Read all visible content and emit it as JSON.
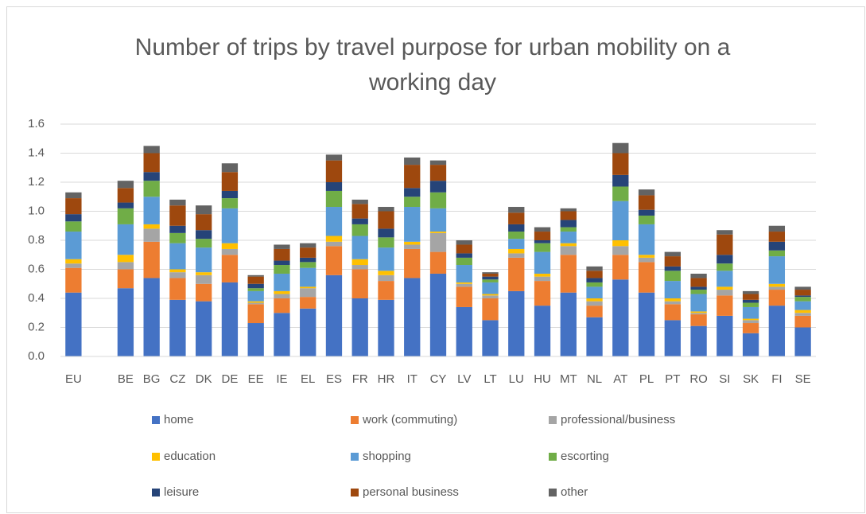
{
  "chart_data": {
    "type": "stacked_bar",
    "title": "Number of trips by travel purpose for urban mobility on a working day",
    "categories": [
      "EU",
      null,
      "BE",
      "BG",
      "CZ",
      "DK",
      "DE",
      "EE",
      "IE",
      "EL",
      "ES",
      "FR",
      "HR",
      "IT",
      "CY",
      "LV",
      "LT",
      "LU",
      "HU",
      "MT",
      "NL",
      "AT",
      "PL",
      "PT",
      "RO",
      "SI",
      "SK",
      "FI",
      "SE"
    ],
    "series": [
      {
        "name": "home",
        "color": "#4472c4",
        "values": [
          0.44,
          null,
          0.47,
          0.54,
          0.39,
          0.38,
          0.51,
          0.23,
          0.3,
          0.33,
          0.56,
          0.4,
          0.39,
          0.54,
          0.57,
          0.34,
          0.25,
          0.45,
          0.35,
          0.44,
          0.27,
          0.53,
          0.44,
          0.25,
          0.21,
          0.28,
          0.16,
          0.35,
          0.2
        ]
      },
      {
        "name": "work (commuting)",
        "color": "#ed7d31",
        "values": [
          0.17,
          null,
          0.13,
          0.25,
          0.15,
          0.12,
          0.19,
          0.13,
          0.1,
          0.08,
          0.2,
          0.2,
          0.13,
          0.2,
          0.15,
          0.14,
          0.15,
          0.23,
          0.17,
          0.26,
          0.08,
          0.17,
          0.21,
          0.11,
          0.08,
          0.14,
          0.07,
          0.11,
          0.08
        ]
      },
      {
        "name": "professional/business",
        "color": "#a5a5a5",
        "values": [
          0.03,
          null,
          0.05,
          0.09,
          0.04,
          0.06,
          0.04,
          0.01,
          0.03,
          0.06,
          0.03,
          0.03,
          0.04,
          0.03,
          0.13,
          0.02,
          0.02,
          0.03,
          0.03,
          0.06,
          0.03,
          0.06,
          0.03,
          0.02,
          0.01,
          0.04,
          0.02,
          0.02,
          0.02
        ]
      },
      {
        "name": "education",
        "color": "#ffc000",
        "values": [
          0.03,
          null,
          0.05,
          0.03,
          0.02,
          0.02,
          0.04,
          0.01,
          0.02,
          0.01,
          0.04,
          0.04,
          0.03,
          0.02,
          0.01,
          0.01,
          0.01,
          0.03,
          0.02,
          0.02,
          0.02,
          0.04,
          0.02,
          0.02,
          0.01,
          0.02,
          0.01,
          0.02,
          0.02
        ]
      },
      {
        "name": "shopping",
        "color": "#5b9bd5",
        "values": [
          0.19,
          null,
          0.21,
          0.19,
          0.18,
          0.17,
          0.24,
          0.07,
          0.12,
          0.13,
          0.2,
          0.16,
          0.16,
          0.24,
          0.16,
          0.12,
          0.08,
          0.07,
          0.15,
          0.08,
          0.08,
          0.27,
          0.21,
          0.12,
          0.12,
          0.11,
          0.08,
          0.19,
          0.06
        ]
      },
      {
        "name": "escorting",
        "color": "#70ad47",
        "values": [
          0.07,
          null,
          0.11,
          0.11,
          0.07,
          0.06,
          0.07,
          0.02,
          0.06,
          0.04,
          0.11,
          0.08,
          0.07,
          0.07,
          0.11,
          0.05,
          0.02,
          0.05,
          0.06,
          0.03,
          0.03,
          0.1,
          0.06,
          0.07,
          0.03,
          0.05,
          0.03,
          0.04,
          0.03
        ]
      },
      {
        "name": "leisure",
        "color": "#264478",
        "values": [
          0.05,
          null,
          0.04,
          0.06,
          0.05,
          0.06,
          0.05,
          0.03,
          0.03,
          0.03,
          0.06,
          0.04,
          0.06,
          0.06,
          0.08,
          0.03,
          0.02,
          0.05,
          0.02,
          0.05,
          0.03,
          0.08,
          0.04,
          0.03,
          0.02,
          0.06,
          0.02,
          0.06,
          0.01
        ]
      },
      {
        "name": "personal business",
        "color": "#9e480e",
        "values": [
          0.11,
          null,
          0.1,
          0.13,
          0.14,
          0.11,
          0.13,
          0.05,
          0.08,
          0.07,
          0.15,
          0.1,
          0.12,
          0.16,
          0.11,
          0.06,
          0.02,
          0.08,
          0.06,
          0.06,
          0.05,
          0.15,
          0.1,
          0.07,
          0.06,
          0.14,
          0.04,
          0.07,
          0.04
        ]
      },
      {
        "name": "other",
        "color": "#636363",
        "values": [
          0.04,
          null,
          0.05,
          0.05,
          0.04,
          0.06,
          0.06,
          0.01,
          0.03,
          0.03,
          0.04,
          0.03,
          0.03,
          0.05,
          0.03,
          0.03,
          0.01,
          0.04,
          0.03,
          0.02,
          0.03,
          0.07,
          0.04,
          0.03,
          0.03,
          0.03,
          0.02,
          0.04,
          0.02
        ]
      }
    ],
    "ylim": [
      0,
      1.6
    ],
    "yticks": [
      {
        "value": 0,
        "label": "0.0"
      },
      0.2,
      0.4,
      0.6,
      0.8,
      {
        "value": 1,
        "label": "1.0"
      },
      1.2,
      1.4,
      1.6
    ],
    "grid": true,
    "legend": "bottom"
  }
}
